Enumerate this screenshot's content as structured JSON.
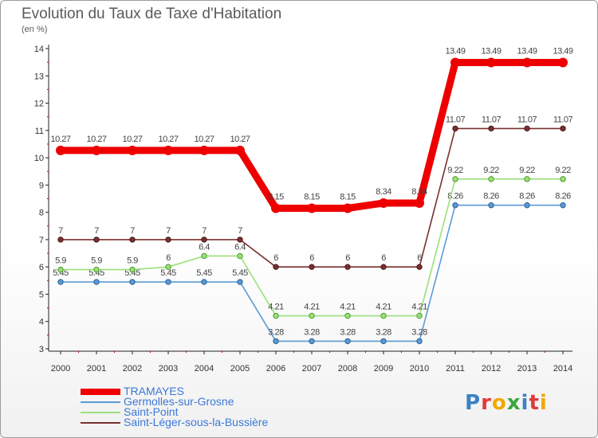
{
  "title": "Evolution du Taux de Taxe d'Habitation",
  "unit": "(en %)",
  "logo": {
    "text": "Proxiti",
    "colors": [
      "#3b82c4",
      "#e03a3a",
      "#f0a800",
      "#3aa63a",
      "#3b82c4",
      "#e03a3a",
      "#f0a800"
    ]
  },
  "chart_data": {
    "type": "line",
    "x": [
      "2000",
      "2001",
      "2002",
      "2003",
      "2004",
      "2005",
      "2006",
      "2007",
      "2008",
      "2009",
      "2010",
      "2011",
      "2012",
      "2013",
      "2014"
    ],
    "ylim": [
      3,
      14
    ],
    "yticks": [
      "3",
      "4",
      "5",
      "6",
      "7",
      "8",
      "9",
      "10",
      "11",
      "12",
      "13",
      "14"
    ],
    "grid": false,
    "legend_position": "bottom-left",
    "series": [
      {
        "name": "TRAMAYES",
        "color": "#ee0000",
        "thick": true,
        "values": [
          10.27,
          10.27,
          10.27,
          10.27,
          10.27,
          10.27,
          8.15,
          8.15,
          8.15,
          8.34,
          8.34,
          13.49,
          13.49,
          13.49,
          13.49
        ],
        "labels": [
          "10.27",
          "10.27",
          "10.27",
          "10.27",
          "10.27",
          "10.27",
          "8.15",
          "8.15",
          "8.15",
          "8.34",
          "8.34",
          "13.49",
          "13.49",
          "13.49",
          "13.49"
        ]
      },
      {
        "name": "Germolles-sur-Grosne",
        "color": "#5b9bd5",
        "thick": false,
        "values": [
          5.45,
          5.45,
          5.45,
          5.45,
          5.45,
          5.45,
          3.28,
          3.28,
          3.28,
          3.28,
          3.28,
          8.26,
          8.26,
          8.26,
          8.26
        ],
        "labels": [
          "5.45",
          "5.45",
          "5.45",
          "5.45",
          "5.45",
          "5.45",
          "3.28",
          "3.28",
          "3.28",
          "3.28",
          "3.28",
          "8.26",
          "8.26",
          "8.26",
          "8.26"
        ]
      },
      {
        "name": "Saint-Point",
        "color": "#9be07a",
        "thick": false,
        "values": [
          5.9,
          5.9,
          5.9,
          6,
          6.4,
          6.4,
          4.21,
          4.21,
          4.21,
          4.21,
          4.21,
          9.22,
          9.22,
          9.22,
          9.22
        ],
        "labels": [
          "5.9",
          "5.9",
          "5.9",
          "6",
          "6.4",
          "6.4",
          "4.21",
          "4.21",
          "4.21",
          "4.21",
          "4.21",
          "9.22",
          "9.22",
          "9.22",
          "9.22"
        ]
      },
      {
        "name": "Saint-Léger-sous-la-Bussière",
        "color": "#7a3030",
        "thick": false,
        "values": [
          7,
          7,
          7,
          7,
          7,
          7,
          6,
          6,
          6,
          6,
          6,
          11.07,
          11.07,
          11.07,
          11.07
        ],
        "labels": [
          "7",
          "7",
          "7",
          "7",
          "7",
          "7",
          "6",
          "6",
          "6",
          "6",
          "6",
          "11.07",
          "11.07",
          "11.07",
          "11.07"
        ]
      }
    ]
  }
}
